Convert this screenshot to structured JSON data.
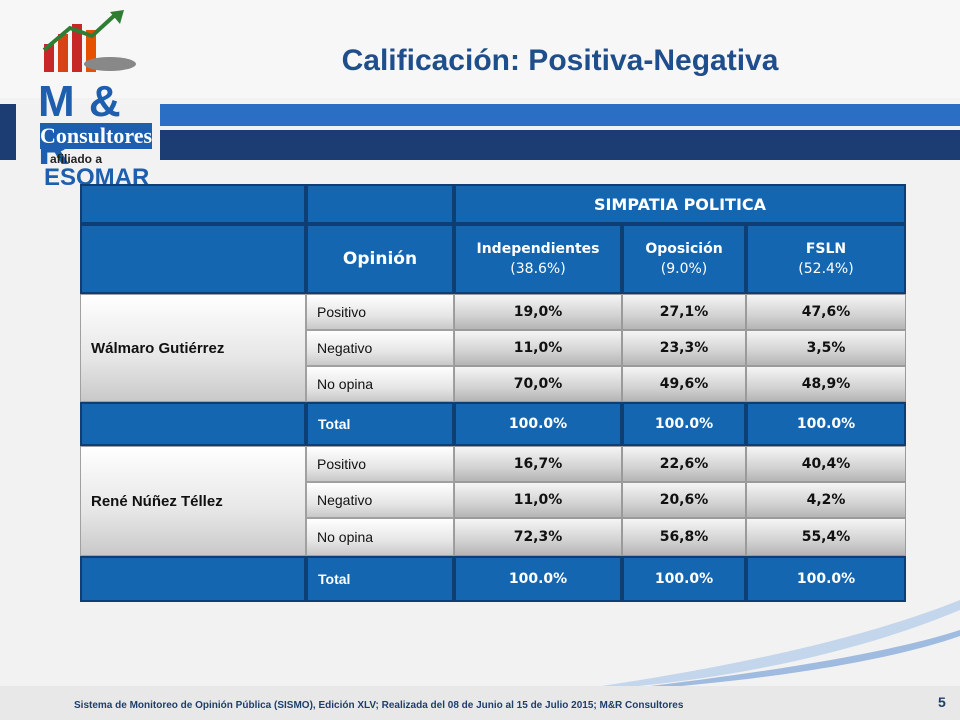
{
  "slide": {
    "title": "Calificación: Positiva-Negativa",
    "page_number": "5",
    "footer": "Sistema de Monitoreo de Opinión Pública (SISMO), Edición XLV; Realizada del 08 de Junio al 15 de Julio 2015; M&R Consultores"
  },
  "logo": {
    "name": "M & R",
    "subtitle": "Consultores",
    "affiliation": "afiliado a",
    "partner": "ESOMAR"
  },
  "table": {
    "group_header": "SIMPATIA POLITICA",
    "opinion_header": "Opinión",
    "columns": [
      {
        "name": "Independientes",
        "pct": "(38.6%)"
      },
      {
        "name": "Oposición",
        "pct": "(9.0%)"
      },
      {
        "name": "FSLN",
        "pct": "(52.4%)"
      }
    ],
    "blocks": [
      {
        "candidate": "Wálmaro Gutiérrez",
        "rows": [
          {
            "label": "Positivo",
            "values": [
              "19,0%",
              "27,1%",
              "47,6%"
            ]
          },
          {
            "label": "Negativo",
            "values": [
              "11,0%",
              "23,3%",
              "3,5%"
            ]
          },
          {
            "label": "No opina",
            "values": [
              "70,0%",
              "49,6%",
              "48,9%"
            ]
          }
        ],
        "total": {
          "label": "Total",
          "values": [
            "100.0%",
            "100.0%",
            "100.0%"
          ]
        }
      },
      {
        "candidate": "René Núñez Téllez",
        "rows": [
          {
            "label": "Positivo",
            "values": [
              "16,7%",
              "22,6%",
              "40,4%"
            ]
          },
          {
            "label": "Negativo",
            "values": [
              "11,0%",
              "20,6%",
              "4,2%"
            ]
          },
          {
            "label": "No opina",
            "values": [
              "72,3%",
              "56,8%",
              "55,4%"
            ]
          }
        ],
        "total": {
          "label": "Total",
          "values": [
            "100.0%",
            "100.0%",
            "100.0%"
          ]
        }
      }
    ]
  },
  "colors": {
    "header_blue": "#1566b1",
    "title_blue": "#1f4e8c",
    "stripe_dark": "#1c3d73"
  }
}
